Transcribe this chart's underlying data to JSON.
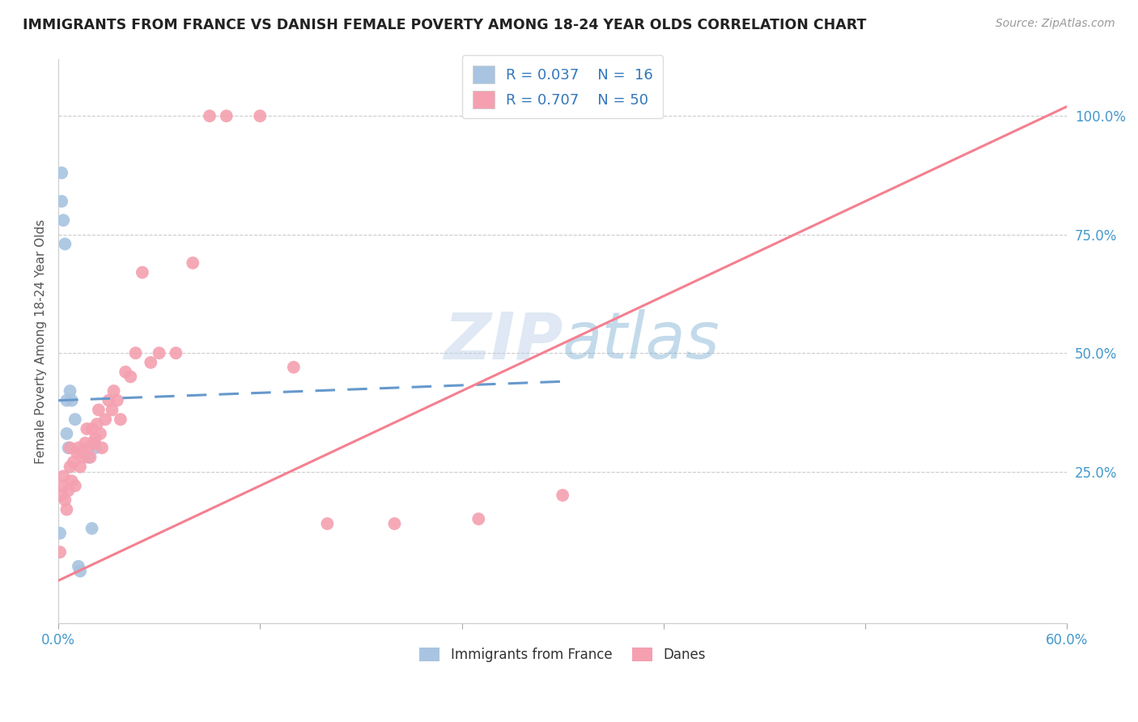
{
  "title": "IMMIGRANTS FROM FRANCE VS DANISH FEMALE POVERTY AMONG 18-24 YEAR OLDS CORRELATION CHART",
  "source": "Source: ZipAtlas.com",
  "ylabel": "Female Poverty Among 18-24 Year Olds",
  "right_yticks": [
    "100.0%",
    "75.0%",
    "50.0%",
    "25.0%"
  ],
  "right_ytick_vals": [
    1.0,
    0.75,
    0.5,
    0.25
  ],
  "watermark": "ZIPatlas",
  "france_R": "0.037",
  "france_N": "16",
  "danes_R": "0.707",
  "danes_N": "50",
  "france_color": "#a8c4e0",
  "danes_color": "#f4a0b0",
  "france_line_color": "#6699cc",
  "danes_line_color": "#f48090",
  "france_x": [
    0.001,
    0.002,
    0.002,
    0.003,
    0.004,
    0.005,
    0.005,
    0.006,
    0.007,
    0.008,
    0.01,
    0.012,
    0.013,
    0.018,
    0.02,
    0.022
  ],
  "france_y": [
    0.12,
    0.88,
    0.82,
    0.78,
    0.73,
    0.4,
    0.33,
    0.3,
    0.42,
    0.4,
    0.36,
    0.05,
    0.04,
    0.28,
    0.13,
    0.3
  ],
  "danes_x": [
    0.001,
    0.002,
    0.003,
    0.003,
    0.004,
    0.005,
    0.006,
    0.007,
    0.007,
    0.008,
    0.009,
    0.01,
    0.011,
    0.012,
    0.013,
    0.014,
    0.015,
    0.016,
    0.017,
    0.018,
    0.019,
    0.02,
    0.021,
    0.022,
    0.023,
    0.024,
    0.025,
    0.026,
    0.028,
    0.03,
    0.032,
    0.033,
    0.035,
    0.037,
    0.04,
    0.043,
    0.046,
    0.05,
    0.055,
    0.06,
    0.07,
    0.08,
    0.09,
    0.1,
    0.12,
    0.14,
    0.16,
    0.2,
    0.25,
    0.3
  ],
  "danes_y": [
    0.08,
    0.2,
    0.22,
    0.24,
    0.19,
    0.17,
    0.21,
    0.3,
    0.26,
    0.23,
    0.27,
    0.22,
    0.29,
    0.3,
    0.26,
    0.29,
    0.28,
    0.31,
    0.34,
    0.3,
    0.28,
    0.34,
    0.31,
    0.32,
    0.35,
    0.38,
    0.33,
    0.3,
    0.36,
    0.4,
    0.38,
    0.42,
    0.4,
    0.36,
    0.46,
    0.45,
    0.5,
    0.67,
    0.48,
    0.5,
    0.5,
    0.69,
    1.0,
    1.0,
    1.0,
    0.47,
    0.14,
    0.14,
    0.15,
    0.2
  ],
  "xmin": 0.0,
  "xmax": 0.6,
  "ymin": -0.07,
  "ymax": 1.12,
  "france_trend_x": [
    0.0,
    0.3
  ],
  "france_trend_y": [
    0.4,
    0.44
  ],
  "danes_trend_x": [
    0.0,
    0.6
  ],
  "danes_trend_y": [
    0.02,
    1.02
  ],
  "xticks": [
    0.0,
    0.12,
    0.24,
    0.36,
    0.48,
    0.6
  ],
  "xtick_labels": [
    "0.0%",
    "",
    "",
    "",
    "",
    "60.0%"
  ]
}
